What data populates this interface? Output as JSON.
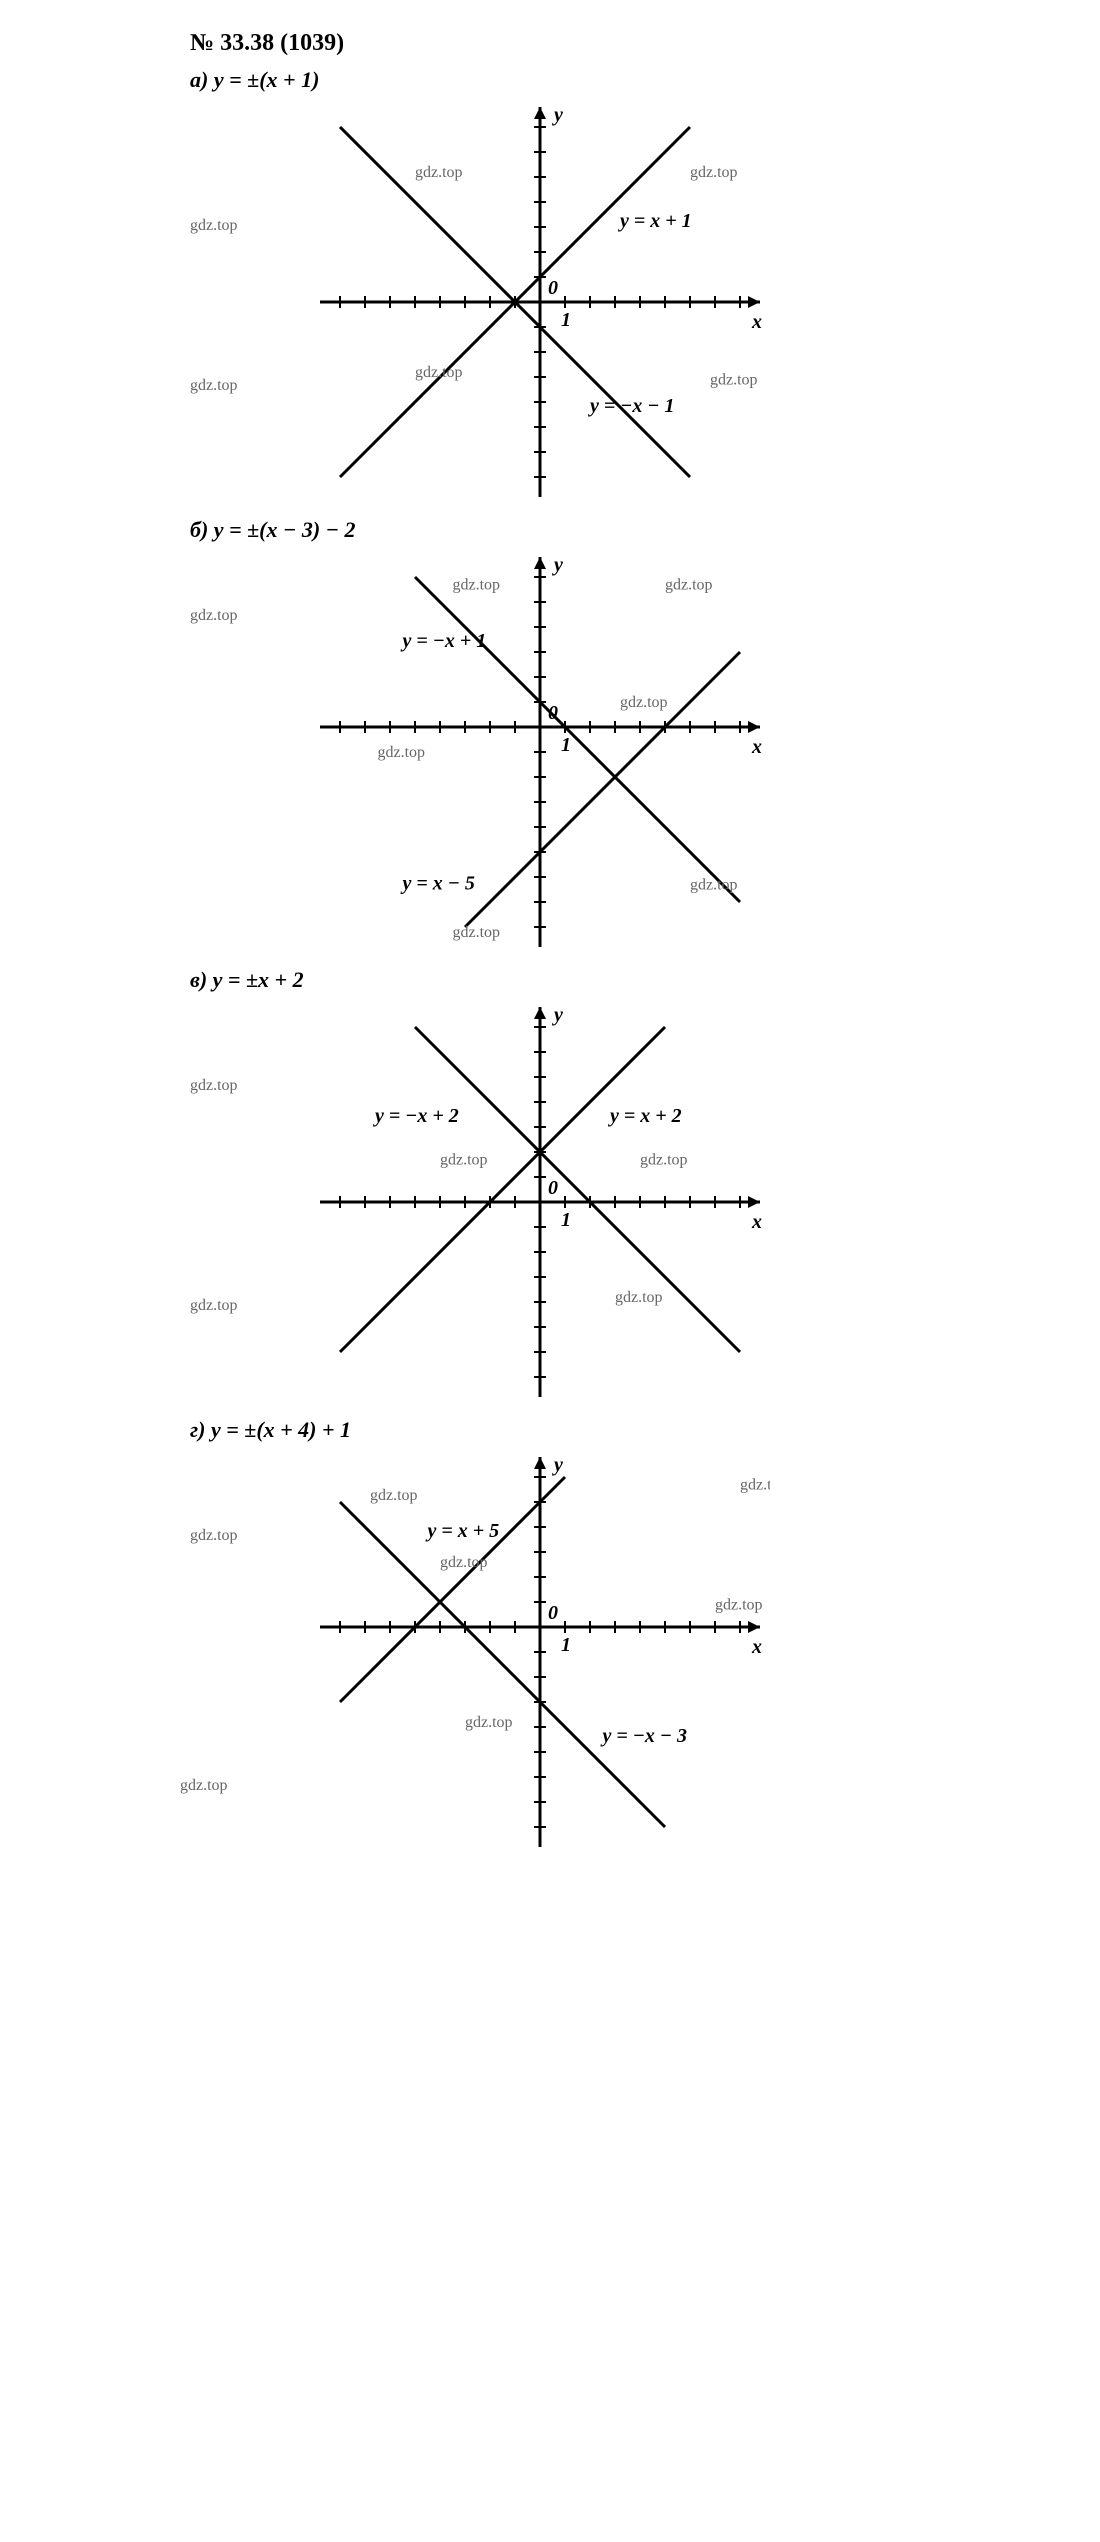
{
  "title": "№ 33.38 (1039)",
  "watermark": "gdz.top",
  "axis": {
    "xlabel": "x",
    "ylabel": "y",
    "origin": "0",
    "unit": "1"
  },
  "colors": {
    "stroke": "#000000",
    "wm": "#666666",
    "bg": "#ffffff"
  },
  "style": {
    "axisWidth": 3,
    "lineWidth": 3,
    "tickLen": 6,
    "tickStep": 1,
    "arrowSize": 10,
    "fontSize": 20,
    "wmFontSize": 16
  },
  "charts": [
    {
      "id": "a",
      "equation": "а)  y = ±(x + 1)",
      "xRange": [
        -8,
        8
      ],
      "yRange": [
        -7,
        7
      ],
      "lines": [
        {
          "m": 1,
          "b": 1,
          "label": "y = x + 1",
          "labelAt": [
            3.2,
            3.0
          ]
        },
        {
          "m": -1,
          "b": -1,
          "label": "y = −x − 1",
          "labelAt": [
            2.0,
            -4.4
          ]
        }
      ],
      "watermarks": [
        [
          -5,
          5
        ],
        [
          6.0,
          5
        ],
        [
          -5,
          -3
        ],
        [
          6.8,
          -3.3
        ]
      ]
    },
    {
      "id": "b",
      "equation": "б)  y = ±(x − 3) − 2",
      "xRange": [
        -8,
        8
      ],
      "yRange": [
        -8,
        6
      ],
      "lines": [
        {
          "m": -1,
          "b": 1,
          "label": "y = −x + 1",
          "labelAt": [
            -5.5,
            3.2
          ]
        },
        {
          "m": 1,
          "b": -5,
          "label": "y = x − 5",
          "labelAt": [
            -5.5,
            -6.5
          ]
        }
      ],
      "watermarks": [
        [
          -3.5,
          5.5
        ],
        [
          5,
          5.5
        ],
        [
          3.2,
          0.8
        ],
        [
          -6.5,
          -1.2
        ],
        [
          6,
          -6.5
        ],
        [
          -3.5,
          -8.4
        ]
      ]
    },
    {
      "id": "v",
      "equation": "в)  y = ±x + 2",
      "xRange": [
        -8,
        8
      ],
      "yRange": [
        -7,
        7
      ],
      "lines": [
        {
          "m": 1,
          "b": 2,
          "label": "y = x + 2",
          "labelAt": [
            2.8,
            3.2
          ]
        },
        {
          "m": -1,
          "b": 2,
          "label": "y = −x + 2",
          "labelAt": [
            -6.6,
            3.2
          ]
        }
      ],
      "watermarks": [
        [
          -4,
          1.5
        ],
        [
          4,
          1.5
        ],
        [
          3,
          -4
        ],
        [
          11,
          -5
        ]
      ]
    },
    {
      "id": "g",
      "equation": "г)  y = ±(x + 4) + 1",
      "xRange": [
        -8,
        8
      ],
      "yRange": [
        -8,
        6
      ],
      "lines": [
        {
          "m": 1,
          "b": 5,
          "label": "y = x + 5",
          "labelAt": [
            -4.5,
            3.6
          ]
        },
        {
          "m": -1,
          "b": -3,
          "label": "y = −x − 3",
          "labelAt": [
            2.5,
            -4.6
          ]
        }
      ],
      "watermarks": [
        [
          8,
          5.5
        ],
        [
          -4,
          2.4
        ],
        [
          -3,
          -4
        ],
        [
          7,
          0.7
        ]
      ]
    }
  ],
  "outerWatermarks": {
    "a": [
      [
        -120,
        120
      ],
      [
        -120,
        280
      ]
    ],
    "b": [
      [
        -120,
        60
      ]
    ],
    "v": [
      [
        -120,
        80
      ],
      [
        -120,
        300
      ],
      [
        60,
        490
      ]
    ],
    "g": [
      [
        -120,
        80
      ],
      [
        -130,
        330
      ]
    ]
  }
}
